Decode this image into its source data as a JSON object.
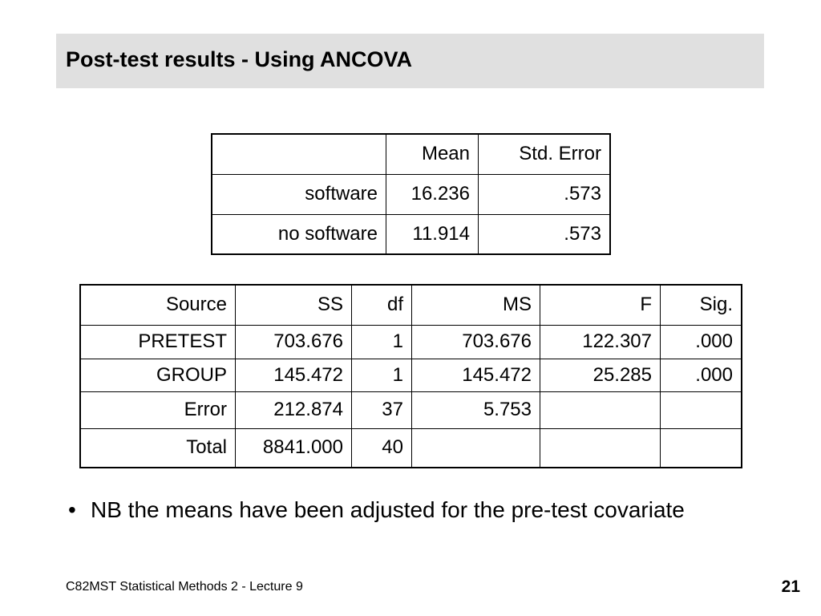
{
  "title": "Post-test results - Using ANCOVA",
  "means_table": {
    "header": [
      "Mean",
      "Std. Error"
    ],
    "rows": [
      [
        "software",
        "16.236",
        ".573"
      ],
      [
        "no software",
        "11.914",
        ".573"
      ]
    ]
  },
  "anova_table": {
    "header": [
      "Source",
      "SS",
      "df",
      "MS",
      "F",
      "Sig."
    ],
    "rows": [
      [
        "PRETEST",
        "703.676",
        "1",
        "703.676",
        "122.307",
        ".000"
      ],
      [
        "GROUP",
        "145.472",
        "1",
        "145.472",
        "25.285",
        ".000"
      ],
      [
        "Error",
        "212.874",
        "37",
        "5.753"
      ],
      [
        "Total",
        "8841.000",
        "40"
      ]
    ]
  },
  "bullet": "NB the means have been adjusted for the pre-test covariate",
  "footer": {
    "course": "C82MST Statistical Methods 2 - Lecture 9",
    "page": "21"
  }
}
